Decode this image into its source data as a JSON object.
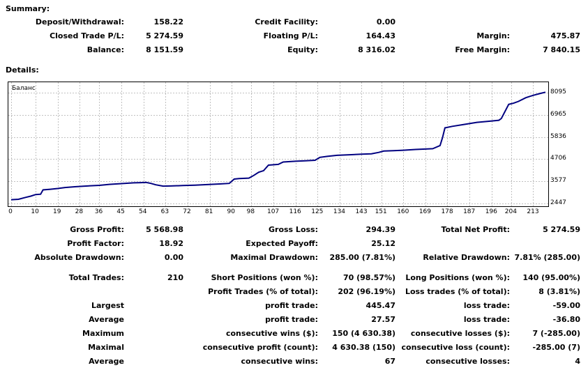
{
  "summary": {
    "heading": "Summary:",
    "deposit_label": "Deposit/Withdrawal:",
    "deposit_value": "158.22",
    "credit_label": "Credit Facility:",
    "credit_value": "0.00",
    "closed_pl_label": "Closed Trade P/L:",
    "closed_pl_value": "5 274.59",
    "floating_pl_label": "Floating P/L:",
    "floating_pl_value": "164.43",
    "margin_label": "Margin:",
    "margin_value": "475.87",
    "balance_label": "Balance:",
    "balance_value": "8 151.59",
    "equity_label": "Equity:",
    "equity_value": "8 316.02",
    "free_margin_label": "Free Margin:",
    "free_margin_value": "7 840.15"
  },
  "details": {
    "heading": "Details:",
    "gross_profit_label": "Gross Profit:",
    "gross_profit_value": "5 568.98",
    "gross_loss_label": "Gross Loss:",
    "gross_loss_value": "294.39",
    "total_net_profit_label": "Total Net Profit:",
    "total_net_profit_value": "5 274.59",
    "profit_factor_label": "Profit Factor:",
    "profit_factor_value": "18.92",
    "expected_payoff_label": "Expected Payoff:",
    "expected_payoff_value": "25.12",
    "absolute_drawdown_label": "Absolute Drawdown:",
    "absolute_drawdown_value": "0.00",
    "maximal_drawdown_label": "Maximal Drawdown:",
    "maximal_drawdown_value": "285.00 (7.81%)",
    "relative_drawdown_label": "Relative Drawdown:",
    "relative_drawdown_value": "7.81% (285.00)",
    "total_trades_label": "Total Trades:",
    "total_trades_value": "210",
    "short_positions_label": "Short Positions (won %):",
    "short_positions_value": "70 (98.57%)",
    "long_positions_label": "Long Positions (won %):",
    "long_positions_value": "140 (95.00%)",
    "profit_trades_label": "Profit Trades (% of total):",
    "profit_trades_value": "202 (96.19%)",
    "loss_trades_label": "Loss trades (% of total):",
    "loss_trades_value": "8 (3.81%)",
    "largest_label": "Largest",
    "largest_profit_label": "profit trade:",
    "largest_profit_value": "445.47",
    "largest_loss_label": "loss trade:",
    "largest_loss_value": "-59.00",
    "average_label": "Average",
    "average_profit_label": "profit trade:",
    "average_profit_value": "27.57",
    "average_loss_label": "loss trade:",
    "average_loss_value": "-36.80",
    "maximum_label": "Maximum",
    "max_cons_wins_label": "consecutive wins ($):",
    "max_cons_wins_value": "150 (4 630.38)",
    "max_cons_losses_label": "consecutive losses ($):",
    "max_cons_losses_value": "7 (-285.00)",
    "maximal_label": "Maximal",
    "maximal_cons_profit_label": "consecutive profit (count):",
    "maximal_cons_profit_value": "4 630.38 (150)",
    "maximal_cons_loss_label": "consecutive loss (count):",
    "maximal_cons_loss_value": "-285.00 (7)",
    "average2_label": "Average",
    "avg_cons_wins_label": "consecutive wins:",
    "avg_cons_wins_value": "67",
    "avg_cons_losses_label": "consecutive losses:",
    "avg_cons_losses_value": "4"
  },
  "chart_data": {
    "type": "line",
    "title": "Баланс",
    "line_color": "#000080",
    "grid": true,
    "grid_color": "#c0c0c0",
    "x_ticks": [
      0,
      10,
      19,
      28,
      36,
      45,
      54,
      63,
      72,
      81,
      90,
      98,
      107,
      116,
      125,
      134,
      143,
      151,
      160,
      169,
      178,
      187,
      196,
      204,
      213
    ],
    "y_ticks": [
      2447,
      3577,
      4706,
      5836,
      6965,
      8095
    ],
    "xlim": [
      0,
      218
    ],
    "ylim": [
      2447,
      8400
    ],
    "series": [
      {
        "values": [
          [
            0,
            2640
          ],
          [
            3,
            2660
          ],
          [
            6,
            2760
          ],
          [
            8,
            2820
          ],
          [
            10,
            2900
          ],
          [
            12,
            2920
          ],
          [
            13,
            3140
          ],
          [
            16,
            3170
          ],
          [
            19,
            3210
          ],
          [
            22,
            3260
          ],
          [
            26,
            3300
          ],
          [
            30,
            3330
          ],
          [
            36,
            3370
          ],
          [
            40,
            3420
          ],
          [
            45,
            3460
          ],
          [
            50,
            3500
          ],
          [
            53,
            3510
          ],
          [
            55,
            3520
          ],
          [
            57,
            3470
          ],
          [
            59,
            3400
          ],
          [
            62,
            3330
          ],
          [
            65,
            3340
          ],
          [
            70,
            3360
          ],
          [
            75,
            3380
          ],
          [
            80,
            3410
          ],
          [
            85,
            3440
          ],
          [
            89,
            3470
          ],
          [
            91,
            3690
          ],
          [
            93,
            3720
          ],
          [
            97,
            3740
          ],
          [
            99,
            3880
          ],
          [
            101,
            4040
          ],
          [
            103,
            4120
          ],
          [
            105,
            4400
          ],
          [
            109,
            4440
          ],
          [
            111,
            4560
          ],
          [
            116,
            4600
          ],
          [
            120,
            4620
          ],
          [
            124,
            4650
          ],
          [
            126,
            4800
          ],
          [
            129,
            4850
          ],
          [
            133,
            4900
          ],
          [
            138,
            4930
          ],
          [
            143,
            4960
          ],
          [
            147,
            4980
          ],
          [
            150,
            5050
          ],
          [
            152,
            5120
          ],
          [
            156,
            5140
          ],
          [
            160,
            5160
          ],
          [
            165,
            5200
          ],
          [
            169,
            5220
          ],
          [
            172,
            5240
          ],
          [
            175,
            5400
          ],
          [
            176,
            5800
          ],
          [
            177,
            6300
          ],
          [
            180,
            6380
          ],
          [
            185,
            6480
          ],
          [
            190,
            6580
          ],
          [
            195,
            6640
          ],
          [
            199,
            6690
          ],
          [
            200,
            6780
          ],
          [
            203,
            7500
          ],
          [
            205,
            7560
          ],
          [
            207,
            7650
          ],
          [
            210,
            7840
          ],
          [
            213,
            7960
          ],
          [
            216,
            8060
          ],
          [
            218,
            8120
          ]
        ]
      }
    ]
  }
}
